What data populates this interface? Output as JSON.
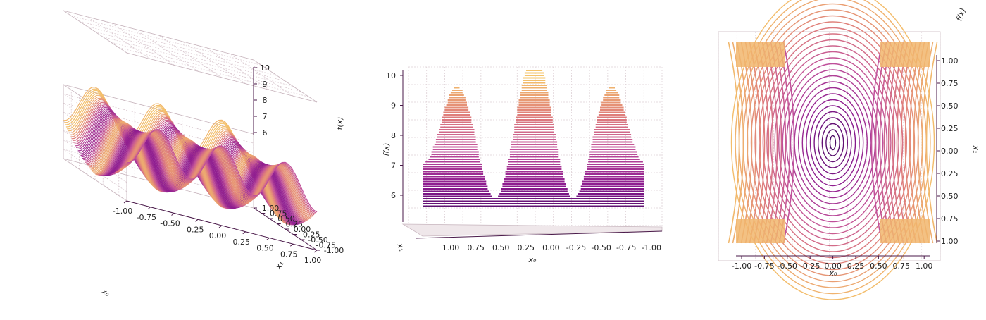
{
  "chart_data": [
    {
      "type": "contour3d",
      "view": "perspective",
      "xlabel": "x₀",
      "ylabel": "x₁",
      "zlabel": "f(x)",
      "xlim": [
        -1.0,
        1.0
      ],
      "ylim": [
        -1.0,
        1.0
      ],
      "zlim": [
        5,
        10
      ],
      "xticks": [
        "-1.00",
        "-0.75",
        "-0.50",
        "-0.25",
        "0.00",
        "0.25",
        "0.50",
        "0.75",
        "1.00"
      ],
      "yticks": [
        "-1.00",
        "-0.75",
        "-0.50",
        "-0.25",
        "0.00",
        "0.25",
        "0.50",
        "0.75",
        "1.00"
      ],
      "zticks": [
        "6",
        "7",
        "8",
        "9",
        "10"
      ],
      "colormap": [
        "#3d0a5c",
        "#8b1a8f",
        "#c0509a",
        "#e0807a",
        "#f5c46a"
      ],
      "grid": true
    },
    {
      "type": "contour3d",
      "view": "side (along x₁)",
      "xlabel": "x₀",
      "ylabel": "x₁",
      "zlabel": "f(x)",
      "xticks": [
        "1.00",
        "0.75",
        "0.50",
        "0.25",
        "0.00",
        "-0.25",
        "-0.50",
        "-0.75",
        "-1.00"
      ],
      "zticks": [
        "6",
        "7",
        "8",
        "9",
        "10"
      ],
      "colormap": [
        "#3d0a5c",
        "#8b1a8f",
        "#c0509a",
        "#e0807a",
        "#f5c46a"
      ],
      "grid": true
    },
    {
      "type": "contour3d",
      "view": "top",
      "xlabel": "x₀",
      "ylabel": "x₁",
      "zlabel": "f(x)",
      "xticks": [
        "-1.00",
        "-0.75",
        "-0.50",
        "-0.25",
        "0.00",
        "0.25",
        "0.50",
        "0.75",
        "1.00"
      ],
      "yticks": [
        "1.00",
        "0.75",
        "0.50",
        "0.25",
        "0.00",
        "0.25",
        "0.50",
        "0.75",
        "1.00"
      ],
      "colormap": [
        "#3d0a5c",
        "#8b1a8f",
        "#c0509a",
        "#e0807a",
        "#f5c46a"
      ],
      "grid": true
    }
  ]
}
